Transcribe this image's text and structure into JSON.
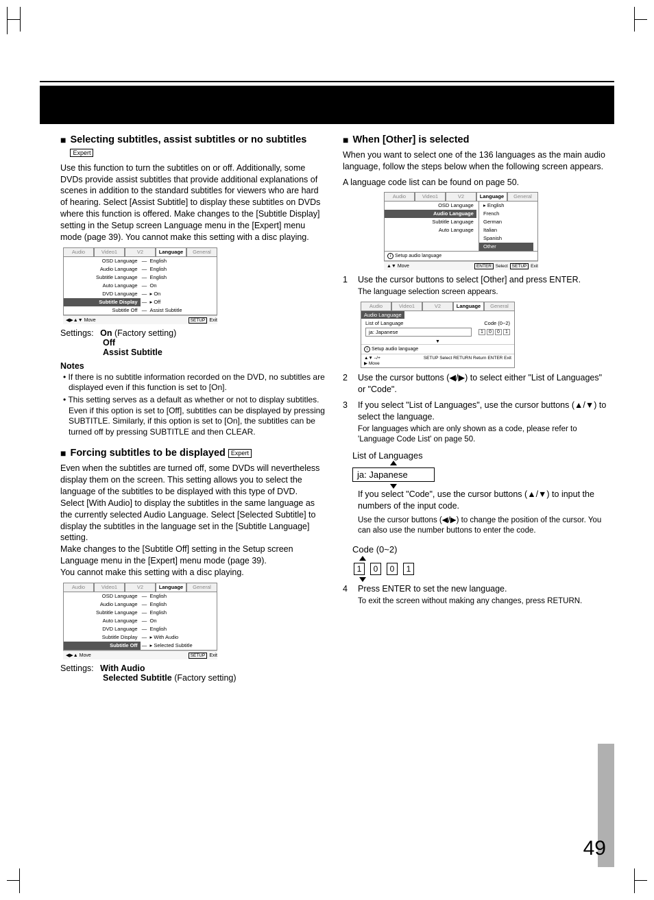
{
  "page_number": "49",
  "left": {
    "section1": {
      "title": "Selecting subtitles, assist subtitles or no subtitles",
      "badge": "Expert",
      "body": "Use this function to turn the subtitles on or off. Additionally, some DVDs provide assist subtitles that provide additional explanations of scenes in addition to the standard subtitles for viewers who are hard of hearing. Select [Assist Subtitle] to display these subtitles on DVDs where this function is offered. Make changes to the [Subtitle Display] setting in the Setup screen Language menu in the [Expert] menu mode (page 39). You cannot make this setting with a disc playing.",
      "settings_label": "Settings:",
      "settings": [
        {
          "v": "On",
          "note": "(Factory setting)"
        },
        {
          "v": "Off",
          "note": ""
        },
        {
          "v": "Assist Subtitle",
          "note": ""
        }
      ],
      "notes_title": "Notes",
      "notes": [
        "If there is no subtitle information recorded on the DVD, no subtitles are displayed even if this function is set to [On].",
        "This setting serves as a default as whether or not to display subtitles. Even if this option is set to [Off], subtitles can be displayed by pressing SUBTITLE. Similarly, if this option is set to [On], the subtitles can be turned off by pressing SUBTITLE and then CLEAR."
      ]
    },
    "section2": {
      "title": "Forcing subtitles to be displayed",
      "badge": "Expert",
      "body": "Even when the subtitles are turned off, some DVDs will nevertheless display them on the screen. This setting allows you to select the language of the subtitles to be displayed with this type of DVD.\nSelect [With Audio] to display the subtitles in the same language as the currently selected Audio Language. Select [Selected Subtitle] to display the subtitles in the language set in the [Subtitle Language] setting.\nMake changes to the [Subtitle Off] setting in the Setup screen Language menu in the [Expert] menu mode (page 39).\nYou cannot make this setting with a disc playing.",
      "settings_label": "Settings:",
      "settings": [
        {
          "v": "With Audio",
          "note": ""
        },
        {
          "v": "Selected Subtitle",
          "note": "(Factory setting)"
        }
      ]
    },
    "menu_tabs": [
      "Audio",
      "Video1",
      "V2",
      "Language",
      "General"
    ],
    "menu1_rows": [
      {
        "l": "OSD Language",
        "r": "English",
        "hl": false
      },
      {
        "l": "Audio Language",
        "r": "English",
        "hl": false
      },
      {
        "l": "Subtitle Language",
        "r": "English",
        "hl": false
      },
      {
        "l": "Auto Language",
        "r": "On",
        "hl": false
      },
      {
        "l": "DVD Language",
        "r": "On",
        "hl": false,
        "mark": true
      },
      {
        "l": "Subtitle Display",
        "r": "Off",
        "hl": true,
        "mark": true
      },
      {
        "l": "Subtitle Off",
        "r": "Assist Subtitle",
        "hl": false
      }
    ],
    "menu2_rows": [
      {
        "l": "OSD Language",
        "r": "English",
        "hl": false
      },
      {
        "l": "Audio Language",
        "r": "English",
        "hl": false
      },
      {
        "l": "Subtitle Language",
        "r": "English",
        "hl": false
      },
      {
        "l": "Auto Language",
        "r": "On",
        "hl": false
      },
      {
        "l": "DVD Language",
        "r": "English",
        "hl": false
      },
      {
        "l": "Subtitle Display",
        "r": "With Audio",
        "hl": false,
        "mark": true
      },
      {
        "l": "Subtitle Off",
        "r": "Selected Subtitle",
        "hl": true,
        "mark": true
      }
    ],
    "menu_move": "Move",
    "menu_setup": "SETUP",
    "menu_exit": "Exit"
  },
  "right": {
    "section1": {
      "title": "When [Other] is selected",
      "body": "When you want to select one of the 136 languages as the main audio language, follow the steps below when the following screen appears.",
      "body2": "A language code list can be found on page 50."
    },
    "lang_menu": {
      "rows": [
        "OSD Language",
        "Audio Language",
        "Subtitle Language",
        "Auto Language"
      ],
      "opts": [
        "English",
        "French",
        "German",
        "Italian",
        "Spanish",
        "Other"
      ],
      "selected_opt": "Other",
      "info": "Setup audio language",
      "move": "Move",
      "enter": "ENTER",
      "select": "Select",
      "setup": "SETUP",
      "exit": "Exit"
    },
    "steps": {
      "s1": "Use the cursor buttons to select [Other] and press ENTER.",
      "s1b": "The language selection screen appears.",
      "s2": "Use the cursor buttons (◀/▶) to select either \"List of Languages\" or \"Code\".",
      "s3": "If you select \"List of Languages\", use the cursor buttons (▲/▼) to select the language.",
      "s3b": "For languages which are only shown as a code, please refer to 'Language Code List' on page 50.",
      "list_label": "List of Languages",
      "list_value": "ja: Japanese",
      "s3c": "If you select \"Code\", use the cursor buttons (▲/▼) to input the numbers of the input code.",
      "s3d": "Use the cursor buttons (◀/▶) to change the position of the cursor. You can also use the number buttons to enter the code.",
      "code_label": "Code (0~2)",
      "code_digits": [
        "1",
        "0",
        "0",
        "1"
      ],
      "s4": "Press ENTER to set the new language.",
      "s4b": "To exit the screen without making any changes, press RETURN."
    },
    "menu3": {
      "hdr": "Audio Language",
      "row_l": "List of Language",
      "row_r": "Code (0~2)",
      "input": "ja: Japanese",
      "digits": [
        "1",
        "0",
        "0",
        "1"
      ],
      "info": "Setup audio language",
      "foot_left_items": [
        "–/+",
        "Move"
      ],
      "foot_right": [
        [
          "SETUP",
          "Select"
        ],
        [
          "RETURN",
          "Return"
        ],
        [
          "ENTER",
          "Exit"
        ]
      ]
    }
  }
}
